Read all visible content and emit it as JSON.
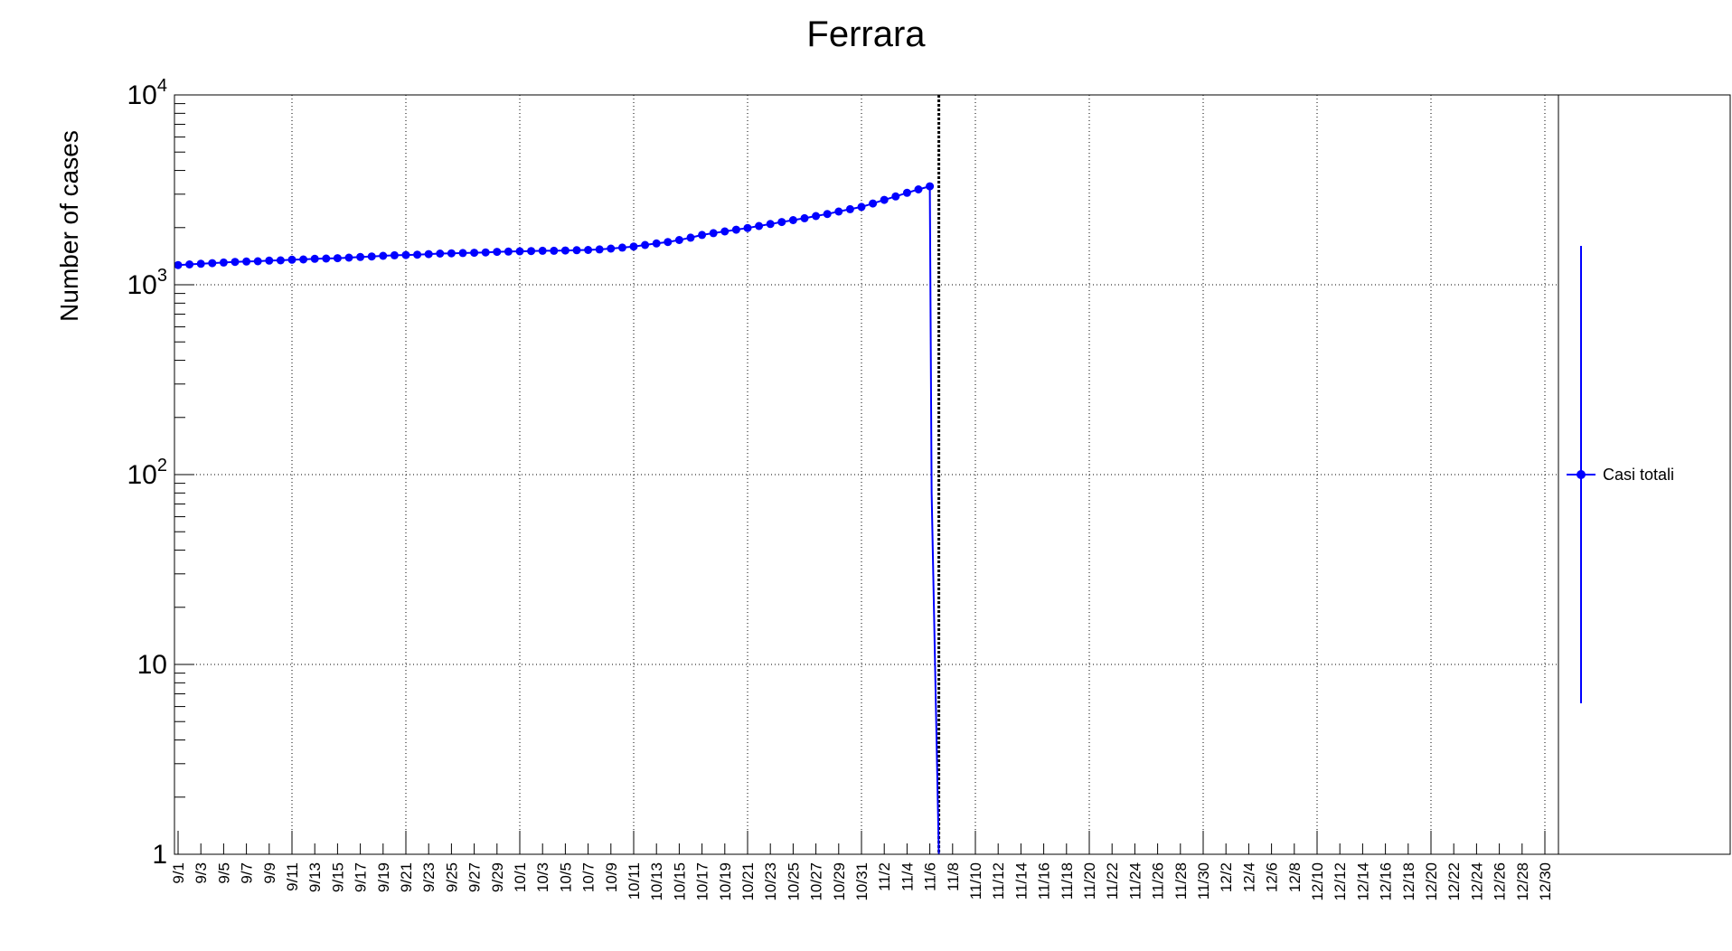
{
  "chart_data": {
    "type": "line",
    "title": "Ferrara",
    "ylabel": "Number of cases",
    "xlabel": "",
    "yscale": "log",
    "ylim": [
      1,
      10000
    ],
    "xlim": [
      "9/1",
      "12/31"
    ],
    "grid": true,
    "legend_position": "right",
    "marker_line_date": "11/6",
    "series_color": "#0000ff",
    "ytick_labels": [
      "1",
      "10",
      "10^2",
      "10^3",
      "10^4"
    ],
    "xtick_labels": [
      "9/1",
      "9/3",
      "9/5",
      "9/7",
      "9/9",
      "9/11",
      "9/13",
      "9/15",
      "9/17",
      "9/19",
      "9/21",
      "9/23",
      "9/25",
      "9/27",
      "9/29",
      "10/1",
      "10/3",
      "10/5",
      "10/7",
      "10/9",
      "10/11",
      "10/13",
      "10/15",
      "10/17",
      "10/19",
      "10/21",
      "10/23",
      "10/25",
      "10/27",
      "10/29",
      "10/31",
      "11/2",
      "11/4",
      "11/6",
      "11/8",
      "11/10",
      "11/12",
      "11/14",
      "11/16",
      "11/18",
      "11/20",
      "11/22",
      "11/24",
      "11/26",
      "11/28",
      "11/30",
      "12/2",
      "12/4",
      "12/6",
      "12/8",
      "12/10",
      "12/12",
      "12/14",
      "12/16",
      "12/18",
      "12/20",
      "12/22",
      "12/24",
      "12/26",
      "12/28",
      "12/30"
    ],
    "series": [
      {
        "name": "Casi totali",
        "x": [
          "9/1",
          "9/2",
          "9/3",
          "9/4",
          "9/5",
          "9/6",
          "9/7",
          "9/8",
          "9/9",
          "9/10",
          "9/11",
          "9/12",
          "9/13",
          "9/14",
          "9/15",
          "9/16",
          "9/17",
          "9/18",
          "9/19",
          "9/20",
          "9/21",
          "9/22",
          "9/23",
          "9/24",
          "9/25",
          "9/26",
          "9/27",
          "9/28",
          "9/29",
          "9/30",
          "10/1",
          "10/2",
          "10/3",
          "10/4",
          "10/5",
          "10/6",
          "10/7",
          "10/8",
          "10/9",
          "10/10",
          "10/11",
          "10/12",
          "10/13",
          "10/14",
          "10/15",
          "10/16",
          "10/17",
          "10/18",
          "10/19",
          "10/20",
          "10/21",
          "10/22",
          "10/23",
          "10/24",
          "10/25",
          "10/26",
          "10/27",
          "10/28",
          "10/29",
          "10/30",
          "10/31",
          "11/1",
          "11/2",
          "11/3",
          "11/4",
          "11/5",
          "11/6"
        ],
        "values": [
          1270,
          1280,
          1290,
          1300,
          1310,
          1320,
          1325,
          1330,
          1340,
          1345,
          1355,
          1360,
          1370,
          1375,
          1380,
          1390,
          1400,
          1410,
          1420,
          1430,
          1435,
          1440,
          1450,
          1460,
          1465,
          1470,
          1475,
          1480,
          1490,
          1495,
          1500,
          1505,
          1510,
          1510,
          1515,
          1520,
          1525,
          1535,
          1550,
          1570,
          1590,
          1620,
          1650,
          1680,
          1720,
          1770,
          1830,
          1870,
          1910,
          1950,
          1990,
          2040,
          2090,
          2140,
          2190,
          2240,
          2300,
          2360,
          2430,
          2500,
          2570,
          2680,
          2800,
          2920,
          3050,
          3180,
          3300
        ]
      }
    ]
  }
}
